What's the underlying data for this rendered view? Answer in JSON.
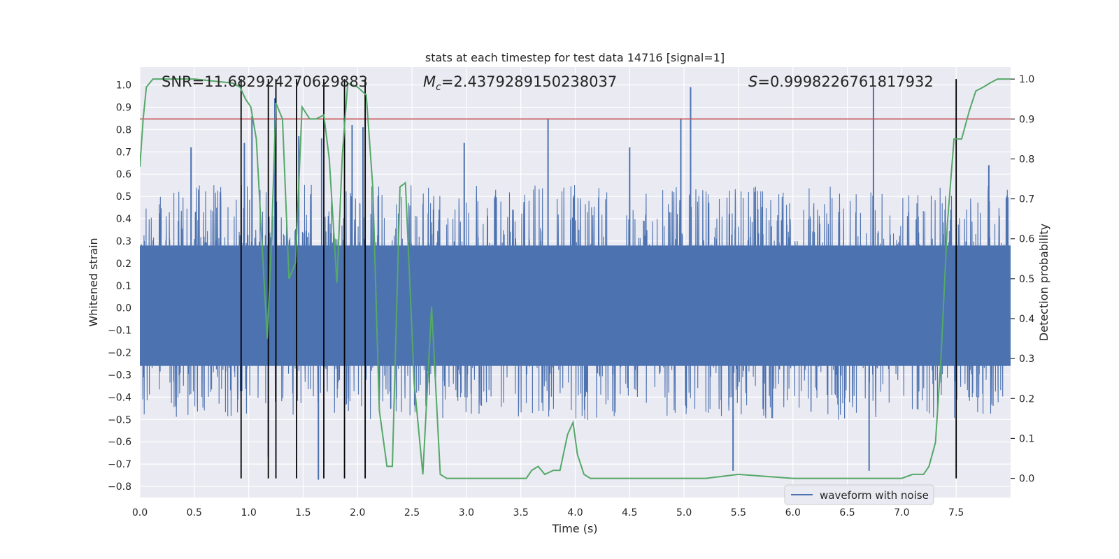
{
  "chart_data": {
    "type": "line",
    "title": "stats at each timestep for test data 14716 [signal=1]",
    "xlabel": "Time (s)",
    "ylabel_left": "Whitened strain",
    "ylabel_right": "Detection probability",
    "xlim": [
      0.0,
      8.0
    ],
    "ylim_left": [
      -0.85,
      1.08
    ],
    "ylim_right": [
      -0.048,
      1.03
    ],
    "x_ticks": [
      "0.0",
      "0.5",
      "1.0",
      "1.5",
      "2.0",
      "2.5",
      "3.0",
      "3.5",
      "4.0",
      "4.5",
      "5.0",
      "5.5",
      "6.0",
      "6.5",
      "7.0",
      "7.5"
    ],
    "y_left_ticks": [
      "1.0",
      "0.9",
      "0.8",
      "0.7",
      "0.6",
      "0.5",
      "0.4",
      "0.3",
      "0.2",
      "0.1",
      "0.0",
      "−0.1",
      "−0.2",
      "−0.3",
      "−0.4",
      "−0.5",
      "−0.6",
      "−0.7",
      "−0.8"
    ],
    "y_right_ticks": [
      "1.0",
      "0.9",
      "0.8",
      "0.7",
      "0.6",
      "0.5",
      "0.4",
      "0.3",
      "0.2",
      "0.1",
      "0.0"
    ],
    "grid": true,
    "legend": {
      "placement": "lower-right",
      "entries": [
        "waveform with noise"
      ]
    },
    "annotations": {
      "snr": "SNR=11.682924270629883",
      "mc_symbol": "M",
      "mc_sub": "c",
      "mc_value": "=2.4379289150238037",
      "s_symbol": "S",
      "s_value": "=0.9998226761817932"
    },
    "threshold": 0.9,
    "event_times": [
      0.93,
      1.18,
      1.25,
      1.44,
      1.69,
      1.88,
      2.07,
      7.5
    ],
    "series": [
      {
        "name": "waveform with noise",
        "axis": "left",
        "style": "noise",
        "x_range": [
          0.0,
          8.0
        ],
        "typical_envelope": [
          -0.42,
          0.46
        ],
        "peaks": [
          {
            "x": 0.47,
            "y": 0.72
          },
          {
            "x": 0.96,
            "y": 0.74
          },
          {
            "x": 1.03,
            "y": 0.86
          },
          {
            "x": 1.18,
            "y": -0.67
          },
          {
            "x": 1.24,
            "y": 0.94
          },
          {
            "x": 1.46,
            "y": 0.77
          },
          {
            "x": 1.64,
            "y": -0.77
          },
          {
            "x": 1.67,
            "y": 0.76
          },
          {
            "x": 1.95,
            "y": 0.82
          },
          {
            "x": 2.05,
            "y": 0.81
          },
          {
            "x": 2.98,
            "y": 0.74
          },
          {
            "x": 3.75,
            "y": 0.85
          },
          {
            "x": 4.5,
            "y": 0.72
          },
          {
            "x": 4.97,
            "y": 0.85
          },
          {
            "x": 5.06,
            "y": 0.99
          },
          {
            "x": 5.45,
            "y": -0.73
          },
          {
            "x": 6.7,
            "y": -0.73
          },
          {
            "x": 6.74,
            "y": 0.99
          },
          {
            "x": 7.8,
            "y": 0.64
          }
        ]
      },
      {
        "name": "",
        "axis": "right",
        "style": "line",
        "x": [
          0.0,
          0.03,
          0.06,
          0.12,
          0.5,
          0.85,
          0.92,
          0.97,
          1.02,
          1.07,
          1.12,
          1.17,
          1.21,
          1.25,
          1.31,
          1.37,
          1.43,
          1.49,
          1.56,
          1.62,
          1.69,
          1.74,
          1.81,
          1.86,
          1.91,
          2.0,
          2.08,
          2.14,
          2.2,
          2.27,
          2.32,
          2.39,
          2.44,
          2.52,
          2.6,
          2.68,
          2.76,
          2.82,
          2.9,
          3.0,
          3.3,
          3.55,
          3.6,
          3.66,
          3.72,
          3.8,
          3.86,
          3.93,
          3.98,
          4.02,
          4.08,
          4.14,
          4.5,
          5.0,
          5.2,
          5.5,
          6.0,
          6.5,
          6.85,
          7.0,
          7.1,
          7.2,
          7.25,
          7.31,
          7.36,
          7.42,
          7.48,
          7.55,
          7.62,
          7.68,
          7.75,
          7.81,
          7.88,
          8.0
        ],
        "y": [
          0.78,
          0.9,
          0.98,
          1.0,
          1.0,
          0.99,
          0.98,
          0.95,
          0.93,
          0.85,
          0.6,
          0.35,
          0.6,
          0.94,
          0.9,
          0.5,
          0.54,
          0.93,
          0.9,
          0.9,
          0.91,
          0.8,
          0.49,
          0.81,
          0.99,
          0.98,
          0.96,
          0.73,
          0.17,
          0.03,
          0.03,
          0.73,
          0.74,
          0.24,
          0.01,
          0.43,
          0.01,
          0.0,
          0.0,
          0.0,
          0.0,
          0.0,
          0.02,
          0.03,
          0.01,
          0.02,
          0.02,
          0.11,
          0.14,
          0.06,
          0.01,
          0.0,
          0.0,
          0.0,
          0.0,
          0.01,
          0.0,
          0.0,
          0.0,
          0.0,
          0.01,
          0.01,
          0.03,
          0.09,
          0.3,
          0.64,
          0.85,
          0.85,
          0.92,
          0.97,
          0.98,
          0.99,
          1.0,
          1.0
        ]
      }
    ]
  },
  "colors": {
    "plot_bg": "#eaeaf2",
    "grid": "#ffffff",
    "noise": "#4c72b0",
    "probability": "#55a868",
    "threshold": "#c44e52",
    "events": "#000000"
  }
}
